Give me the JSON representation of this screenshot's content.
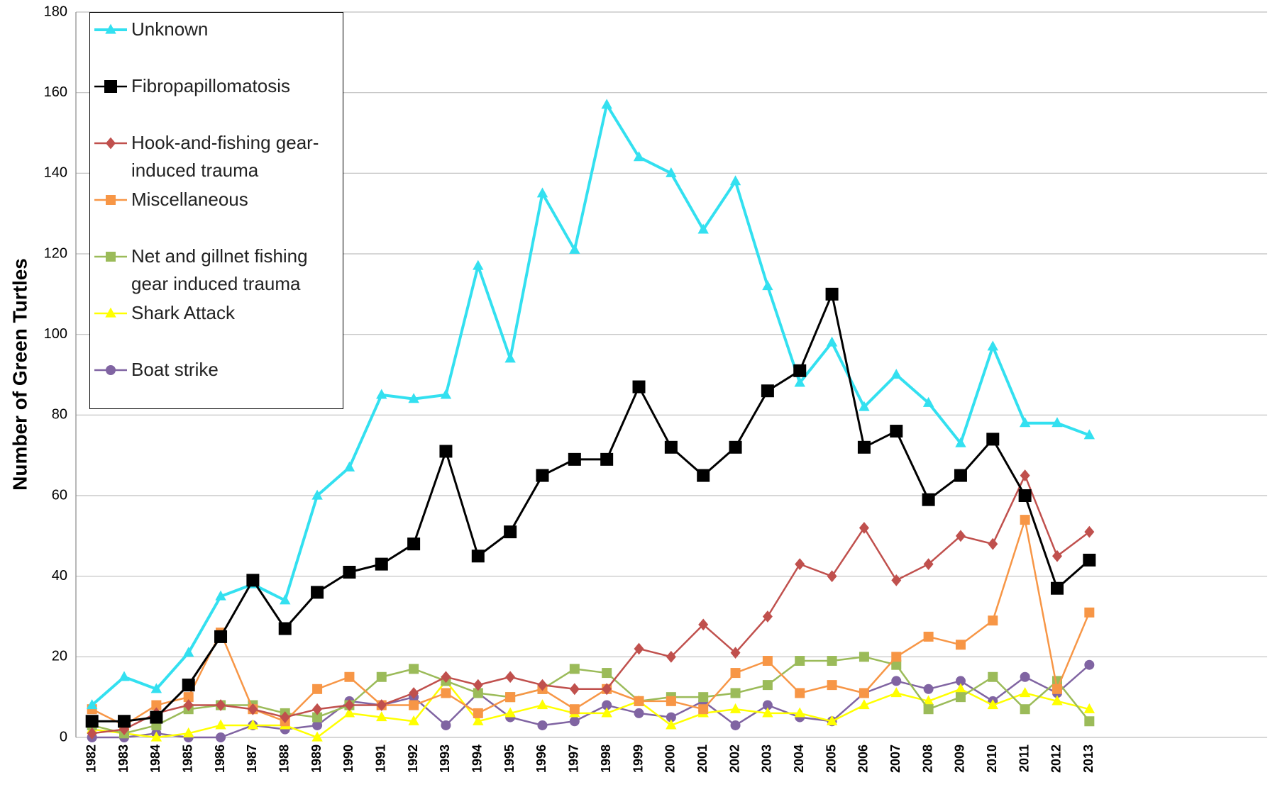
{
  "chart_data": {
    "type": "line",
    "ylabel": "Number of Green Turtles",
    "categories": [
      "1982",
      "1983",
      "1984",
      "1985",
      "1986",
      "1987",
      "1988",
      "1989",
      "1990",
      "1991",
      "1992",
      "1993",
      "1994",
      "1995",
      "1996",
      "1997",
      "1998",
      "1999",
      "2000",
      "2001",
      "2002",
      "2003",
      "2004",
      "2005",
      "2006",
      "2007",
      "2008",
      "2009",
      "2010",
      "2011",
      "2012",
      "2013"
    ],
    "ylim": [
      0,
      180
    ],
    "yticks": [
      0,
      20,
      40,
      60,
      80,
      100,
      120,
      140,
      160,
      180
    ],
    "grid": true,
    "legend": "upper left",
    "series": [
      {
        "name": "Unknown",
        "color": "#33e0f0",
        "marker": "triangle",
        "values": [
          8,
          15,
          12,
          21,
          35,
          38,
          34,
          60,
          67,
          85,
          84,
          85,
          117,
          94,
          135,
          121,
          157,
          144,
          140,
          126,
          138,
          112,
          88,
          98,
          82,
          90,
          83,
          73,
          97,
          78,
          78,
          75
        ]
      },
      {
        "name": "Fibropapillomatosis",
        "color": "#000000",
        "marker": "square",
        "values": [
          4,
          4,
          5,
          13,
          25,
          39,
          27,
          36,
          41,
          43,
          48,
          71,
          45,
          51,
          65,
          69,
          69,
          87,
          72,
          65,
          72,
          86,
          91,
          110,
          72,
          76,
          59,
          65,
          74,
          60,
          37,
          44
        ]
      },
      {
        "name": "Hook-and-fishing gear-induced trauma",
        "color": "#c0504d",
        "marker": "diamond",
        "values": [
          1,
          2,
          6,
          8,
          8,
          7,
          5,
          7,
          8,
          8,
          11,
          15,
          13,
          15,
          13,
          12,
          12,
          22,
          20,
          28,
          21,
          30,
          43,
          40,
          52,
          39,
          43,
          50,
          48,
          65,
          45,
          51
        ]
      },
      {
        "name": "Miscellaneous",
        "color": "#f79646",
        "marker": "square",
        "values": [
          7,
          3,
          8,
          10,
          26,
          7,
          4,
          12,
          15,
          8,
          8,
          11,
          6,
          10,
          12,
          7,
          12,
          9,
          9,
          7,
          16,
          19,
          11,
          13,
          11,
          20,
          25,
          23,
          29,
          54,
          12,
          31
        ]
      },
      {
        "name": "Net and gillnet fishing gear induced trauma",
        "color": "#9bbb59",
        "marker": "square",
        "values": [
          3,
          1,
          3,
          7,
          8,
          8,
          6,
          5,
          8,
          15,
          17,
          14,
          11,
          10,
          12,
          17,
          16,
          9,
          10,
          10,
          11,
          13,
          19,
          19,
          20,
          18,
          7,
          10,
          15,
          7,
          14,
          4
        ]
      },
      {
        "name": "Shark Attack",
        "color": "#ffff00",
        "marker": "triangle",
        "values": [
          2,
          1,
          0,
          1,
          3,
          3,
          3,
          0,
          6,
          5,
          4,
          14,
          4,
          6,
          8,
          6,
          6,
          9,
          3,
          6,
          7,
          6,
          6,
          4,
          8,
          11,
          9,
          12,
          8,
          11,
          9,
          7
        ]
      },
      {
        "name": "Boat strike",
        "color": "#8064a2",
        "marker": "circle",
        "values": [
          0,
          0,
          1,
          0,
          0,
          3,
          2,
          3,
          9,
          8,
          10,
          3,
          11,
          5,
          3,
          4,
          8,
          6,
          5,
          9,
          3,
          8,
          5,
          4,
          11,
          14,
          12,
          14,
          9,
          15,
          11,
          18
        ]
      }
    ]
  }
}
